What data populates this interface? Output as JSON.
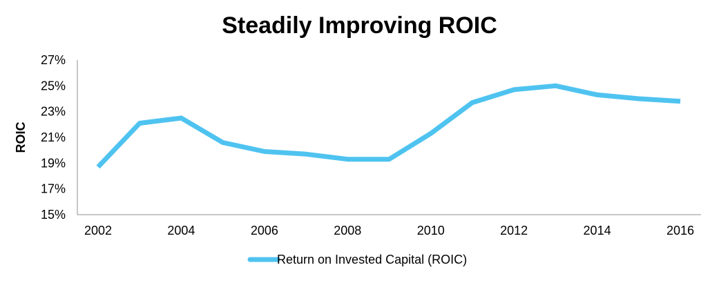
{
  "chart_data": {
    "type": "line",
    "title": "Steadily Improving ROIC",
    "xlabel": "",
    "ylabel": "ROIC",
    "x": [
      2002,
      2003,
      2004,
      2005,
      2006,
      2007,
      2008,
      2009,
      2010,
      2011,
      2012,
      2013,
      2014,
      2015,
      2016
    ],
    "x_tick_labels": [
      "2002",
      "2004",
      "2006",
      "2008",
      "2010",
      "2012",
      "2014",
      "2016"
    ],
    "y_tick_labels": [
      "15%",
      "17%",
      "19%",
      "21%",
      "23%",
      "25%",
      "27%"
    ],
    "ylim": [
      15,
      27
    ],
    "xlim": [
      2002,
      2016
    ],
    "grid": false,
    "legend_position": "bottom",
    "series": [
      {
        "name": "Return on Invested Capital (ROIC)",
        "color": "#4fc3f0",
        "values": [
          18.7,
          22.1,
          22.5,
          20.6,
          19.9,
          19.7,
          19.3,
          19.3,
          21.3,
          23.7,
          24.7,
          25.0,
          24.3,
          24.0,
          23.8
        ]
      }
    ]
  }
}
